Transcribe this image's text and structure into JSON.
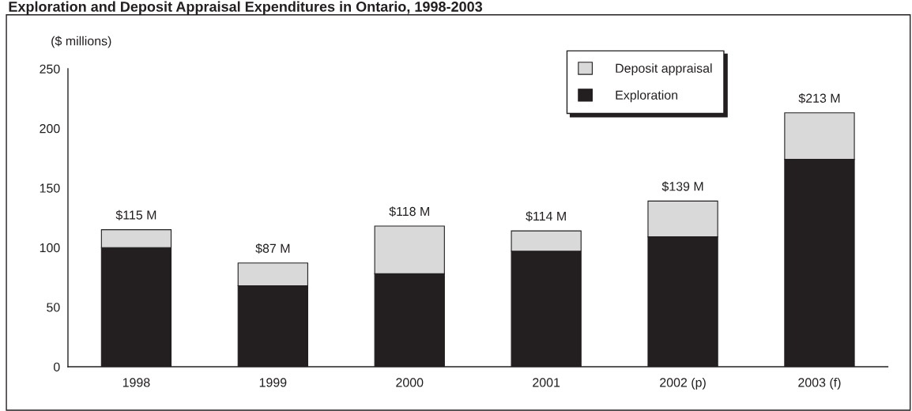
{
  "chart_data": {
    "type": "bar",
    "title": "Exploration and Deposit Appraisal Expenditures in Ontario, 1998-2003",
    "ylabel": "($ millions)",
    "categories": [
      "1998",
      "1999",
      "2000",
      "2001",
      "2002 (p)",
      "2003 (f)"
    ],
    "stacked": true,
    "series": [
      {
        "name": "Exploration",
        "color": "#231f20",
        "values": [
          100,
          68,
          78,
          97,
          109,
          174
        ]
      },
      {
        "name": "Deposit appraisal",
        "color": "#d9d9d9",
        "values": [
          15,
          19,
          40,
          17,
          30,
          39
        ]
      }
    ],
    "totals": [
      "$115 M",
      "$87 M",
      "$118 M",
      "$114 M",
      "$139 M",
      "$213 M"
    ],
    "ylim": [
      0,
      250
    ],
    "yticks": [
      0,
      50,
      100,
      150,
      200,
      250
    ],
    "grid": false,
    "legend": "top right"
  }
}
